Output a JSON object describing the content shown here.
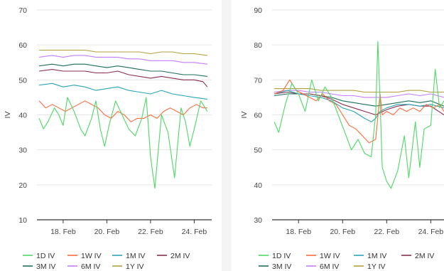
{
  "chart_data": [
    {
      "type": "line",
      "title": "",
      "xlabel": "",
      "ylabel": "IV",
      "ylim": [
        10,
        70
      ],
      "yticks": [
        10,
        20,
        30,
        40,
        50,
        60,
        70
      ],
      "xlim": [
        16.8,
        24.8
      ],
      "xticks": [
        {
          "value": 18,
          "label": "18. Feb"
        },
        {
          "value": 20,
          "label": "20. Feb"
        },
        {
          "value": 22,
          "label": "22. Feb"
        },
        {
          "value": 24,
          "label": "24. Feb"
        }
      ],
      "grid": "horizontal",
      "legend": "bottom",
      "series": [
        {
          "name": "1D IV",
          "color": "#4cd964",
          "x": [
            16.9,
            17.1,
            17.3,
            17.6,
            17.8,
            18.0,
            18.2,
            18.5,
            18.8,
            19.0,
            19.3,
            19.5,
            19.7,
            19.9,
            20.1,
            20.4,
            20.7,
            21.0,
            21.3,
            21.6,
            21.8,
            21.9,
            22.0,
            22.2,
            22.3,
            22.5,
            22.8,
            23.1,
            23.4,
            23.6,
            23.8,
            24.0,
            24.3,
            24.6
          ],
          "y": [
            39,
            36,
            38,
            42,
            40,
            37,
            45,
            41,
            36,
            34,
            39,
            44,
            36,
            31,
            37,
            44,
            40,
            36,
            34,
            39,
            45,
            37,
            28,
            19,
            26,
            40,
            35,
            22,
            42,
            38,
            31,
            36,
            44,
            41
          ]
        },
        {
          "name": "1W IV",
          "color": "#ff6a3d",
          "x": [
            16.9,
            17.2,
            17.5,
            17.8,
            18.1,
            18.4,
            18.7,
            19.0,
            19.3,
            19.6,
            19.9,
            20.2,
            20.5,
            20.8,
            21.1,
            21.4,
            21.7,
            22.0,
            22.3,
            22.6,
            22.9,
            23.2,
            23.5,
            23.8,
            24.1,
            24.4,
            24.6
          ],
          "y": [
            44,
            42,
            43,
            42,
            41,
            42,
            43,
            44,
            43,
            42,
            40,
            39,
            41,
            40,
            38,
            39,
            39,
            40,
            39,
            41,
            42,
            41,
            40,
            42,
            43,
            42,
            42
          ]
        },
        {
          "name": "1M IV",
          "color": "#2aa5b8",
          "x": [
            16.9,
            17.5,
            18.0,
            18.5,
            19.0,
            19.5,
            20.0,
            20.5,
            21.0,
            21.5,
            22.0,
            22.5,
            23.0,
            23.5,
            24.0,
            24.6
          ],
          "y": [
            48.5,
            49,
            48,
            48.5,
            48,
            47,
            47.5,
            48,
            47,
            46.5,
            46,
            47,
            46,
            45.5,
            45,
            44.5
          ]
        },
        {
          "name": "2M IV",
          "color": "#8b2d50",
          "x": [
            16.9,
            17.5,
            18.0,
            18.5,
            19.0,
            19.5,
            20.0,
            20.5,
            21.0,
            21.5,
            22.0,
            22.5,
            23.0,
            23.5,
            24.0,
            24.4,
            24.6
          ],
          "y": [
            52.5,
            53,
            52.5,
            52.5,
            52.5,
            52,
            52,
            52.5,
            51.5,
            51,
            50.5,
            51,
            50.5,
            50,
            50,
            49.5,
            48
          ]
        },
        {
          "name": "3M IV",
          "color": "#1e6f5c",
          "x": [
            16.9,
            17.5,
            18.0,
            18.5,
            19.0,
            19.5,
            20.0,
            20.5,
            21.0,
            21.5,
            22.0,
            22.5,
            23.0,
            23.5,
            24.0,
            24.6
          ],
          "y": [
            54,
            54.5,
            54,
            54.5,
            54.5,
            54,
            53.5,
            54,
            53.5,
            53,
            52.5,
            52.5,
            52,
            51.5,
            51.5,
            51
          ]
        },
        {
          "name": "6M IV",
          "color": "#c77dff",
          "x": [
            16.9,
            17.5,
            18.0,
            18.5,
            19.0,
            19.5,
            20.0,
            20.5,
            21.0,
            21.5,
            22.0,
            22.5,
            23.0,
            23.5,
            24.0,
            24.6
          ],
          "y": [
            56.5,
            57,
            56.5,
            57,
            57,
            56.5,
            56.5,
            56.5,
            56,
            56,
            55.5,
            55.5,
            55.5,
            55,
            55,
            54.5
          ]
        },
        {
          "name": "1Y IV",
          "color": "#b5a040",
          "x": [
            16.9,
            17.5,
            18.0,
            18.5,
            19.0,
            19.5,
            20.0,
            20.5,
            21.0,
            21.5,
            22.0,
            22.5,
            23.0,
            23.5,
            24.0,
            24.6
          ],
          "y": [
            58.5,
            58.5,
            58.5,
            58.5,
            58.5,
            58,
            58,
            58,
            58,
            58,
            57.5,
            58,
            58,
            57.5,
            57.5,
            57
          ]
        }
      ]
    },
    {
      "type": "line",
      "title": "",
      "xlabel": "",
      "ylabel": "IV",
      "ylim": [
        30,
        90
      ],
      "yticks": [
        30,
        40,
        50,
        60,
        70,
        80,
        90
      ],
      "xlim": [
        16.8,
        24.6
      ],
      "xticks": [
        {
          "value": 18,
          "label": "18. Feb"
        },
        {
          "value": 20,
          "label": "20. Feb"
        },
        {
          "value": 22,
          "label": "22. Feb"
        },
        {
          "value": 24,
          "label": "24. Feb"
        }
      ],
      "grid": "horizontal",
      "legend": "bottom",
      "series": [
        {
          "name": "1D IV",
          "color": "#4cd964",
          "x": [
            16.9,
            17.1,
            17.4,
            17.7,
            18.0,
            18.3,
            18.6,
            18.9,
            19.2,
            19.5,
            19.8,
            20.1,
            20.4,
            20.7,
            21.0,
            21.3,
            21.5,
            21.6,
            21.7,
            21.8,
            22.0,
            22.2,
            22.5,
            22.8,
            23.0,
            23.3,
            23.5,
            23.7,
            24.0,
            24.2,
            24.4,
            24.6
          ],
          "y": [
            58,
            55,
            63,
            69,
            66,
            61,
            70,
            64,
            68,
            65,
            60,
            55,
            50,
            53,
            49,
            48,
            60,
            81,
            64,
            45,
            41,
            39,
            44,
            54,
            42,
            58,
            45,
            56,
            57,
            73,
            62,
            64
          ]
        },
        {
          "name": "1W IV",
          "color": "#ff6a3d",
          "x": [
            16.9,
            17.3,
            17.6,
            17.9,
            18.2,
            18.5,
            18.8,
            19.1,
            19.4,
            19.7,
            20.0,
            20.3,
            20.6,
            20.9,
            21.2,
            21.5,
            21.7,
            21.8,
            22.0,
            22.3,
            22.6,
            22.9,
            23.2,
            23.5,
            23.8,
            24.1,
            24.4,
            24.6
          ],
          "y": [
            66,
            67,
            70,
            67,
            66,
            65,
            64,
            66,
            64,
            63,
            60,
            57,
            56,
            54,
            52,
            53,
            66,
            60,
            61,
            60,
            62,
            61,
            62,
            61,
            63,
            62,
            63,
            61
          ]
        },
        {
          "name": "1M IV",
          "color": "#2aa5b8",
          "x": [
            16.9,
            17.5,
            18.0,
            18.5,
            19.0,
            19.5,
            20.0,
            20.5,
            21.0,
            21.3,
            21.5,
            21.7,
            22.0,
            22.5,
            23.0,
            23.5,
            24.0,
            24.6
          ],
          "y": [
            66,
            67,
            66,
            65.5,
            65,
            64,
            62,
            61,
            59,
            58,
            59,
            61,
            62,
            63,
            63,
            62.5,
            63,
            62
          ]
        },
        {
          "name": "2M IV",
          "color": "#8b2d50",
          "x": [
            16.9,
            17.5,
            18.0,
            18.5,
            19.0,
            19.5,
            20.0,
            20.5,
            21.0,
            21.5,
            22.0,
            22.5,
            23.0,
            23.5,
            24.0,
            24.6
          ],
          "y": [
            66,
            66.5,
            66,
            66,
            65.5,
            64.5,
            63,
            62,
            61,
            60,
            61.5,
            62.5,
            63,
            62.5,
            62.5,
            60
          ]
        },
        {
          "name": "3M IV",
          "color": "#1e6f5c",
          "x": [
            16.9,
            17.5,
            18.0,
            18.5,
            19.0,
            19.5,
            20.0,
            20.5,
            21.0,
            21.5,
            22.0,
            22.5,
            23.0,
            23.5,
            24.0,
            24.6
          ],
          "y": [
            65.5,
            66,
            66,
            66,
            65.5,
            65,
            64,
            63.5,
            63,
            62.5,
            63,
            63.5,
            64,
            63.5,
            64,
            62.5
          ]
        },
        {
          "name": "6M IV",
          "color": "#c77dff",
          "x": [
            16.9,
            17.5,
            18.0,
            18.5,
            19.0,
            19.5,
            20.0,
            20.5,
            21.0,
            21.5,
            22.0,
            22.5,
            23.0,
            23.5,
            24.0,
            24.6
          ],
          "y": [
            66.5,
            67,
            67,
            66.5,
            66.5,
            66,
            65.5,
            65.5,
            65,
            65,
            65,
            65.5,
            66,
            65.5,
            66,
            65
          ]
        },
        {
          "name": "1Y IV",
          "color": "#b5a040",
          "x": [
            16.9,
            17.5,
            18.0,
            18.5,
            19.0,
            19.5,
            20.0,
            20.5,
            21.0,
            21.5,
            22.0,
            22.5,
            23.0,
            23.5,
            24.0,
            24.6
          ],
          "y": [
            67.5,
            67.5,
            67.5,
            67.5,
            67,
            67,
            67,
            67,
            66.5,
            66.5,
            66.5,
            66.5,
            67,
            67,
            66.5,
            66.5
          ]
        }
      ]
    }
  ]
}
